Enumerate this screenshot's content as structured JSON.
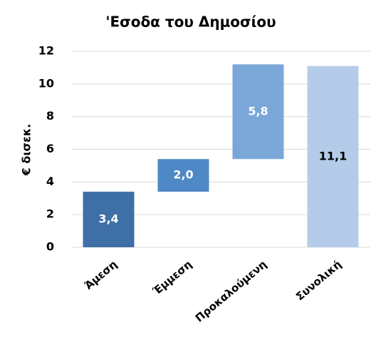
{
  "chart_data": {
    "type": "waterfall",
    "title": "'Εσοδα του Δημοσίου",
    "y_label": "€ δισεκ.",
    "categories": [
      "Άμεση",
      "Έμμεση",
      "Προκαλούμενη",
      "Συνολική"
    ],
    "values": [
      3.4,
      2.0,
      5.8,
      11.1
    ],
    "value_labels": [
      "3,4",
      "2,0",
      "5,8",
      "11,1"
    ],
    "colors": [
      "#3e6fa7",
      "#4f88c6",
      "#7ba7d8",
      "#b4cce9"
    ],
    "ylim": [
      0,
      12
    ],
    "yticks": [
      0,
      2,
      4,
      6,
      8,
      10,
      12
    ],
    "grid": true
  }
}
